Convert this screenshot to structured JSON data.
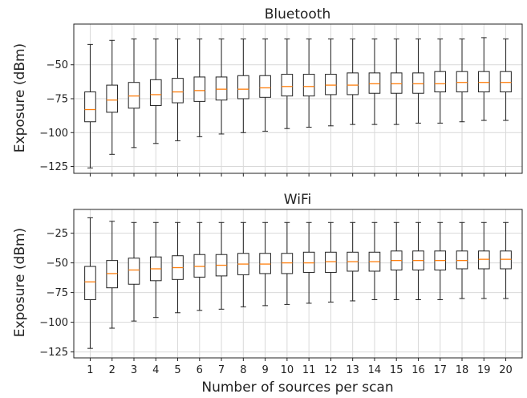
{
  "xlabel": "Number of sources per scan",
  "colors": {
    "median": "#ff7f0e",
    "box": "#222222",
    "grid": "#d9d9d9"
  },
  "chart_data": [
    {
      "type": "box",
      "title": "Bluetooth",
      "xlabel": "Number of sources per scan",
      "ylabel": "Exposure (dBm)",
      "ylim": [
        -130,
        -20
      ],
      "yticks": [
        -50,
        -75,
        -100,
        -125
      ],
      "grid": true,
      "categories": [
        "1",
        "2",
        "3",
        "4",
        "5",
        "6",
        "7",
        "8",
        "9",
        "10",
        "11",
        "12",
        "13",
        "14",
        "15",
        "16",
        "17",
        "18",
        "19",
        "20"
      ],
      "series": [
        {
          "boxes": [
            {
              "whislo": -126,
              "q1": -92,
              "med": -83,
              "q3": -70,
              "whishi": -35
            },
            {
              "whislo": -116,
              "q1": -85,
              "med": -76,
              "q3": -65,
              "whishi": -32
            },
            {
              "whislo": -111,
              "q1": -82,
              "med": -73,
              "q3": -63,
              "whishi": -31
            },
            {
              "whislo": -108,
              "q1": -80,
              "med": -72,
              "q3": -61,
              "whishi": -31
            },
            {
              "whislo": -106,
              "q1": -78,
              "med": -70,
              "q3": -60,
              "whishi": -31
            },
            {
              "whislo": -103,
              "q1": -77,
              "med": -69,
              "q3": -59,
              "whishi": -31
            },
            {
              "whislo": -101,
              "q1": -76,
              "med": -68,
              "q3": -59,
              "whishi": -31
            },
            {
              "whislo": -100,
              "q1": -75,
              "med": -68,
              "q3": -58,
              "whishi": -31
            },
            {
              "whislo": -99,
              "q1": -74,
              "med": -67,
              "q3": -58,
              "whishi": -31
            },
            {
              "whislo": -97,
              "q1": -73,
              "med": -66,
              "q3": -57,
              "whishi": -31
            },
            {
              "whislo": -96,
              "q1": -73,
              "med": -66,
              "q3": -57,
              "whishi": -31
            },
            {
              "whislo": -95,
              "q1": -72,
              "med": -65,
              "q3": -57,
              "whishi": -31
            },
            {
              "whislo": -94,
              "q1": -72,
              "med": -65,
              "q3": -56,
              "whishi": -31
            },
            {
              "whislo": -94,
              "q1": -71,
              "med": -64,
              "q3": -56,
              "whishi": -31
            },
            {
              "whislo": -94,
              "q1": -71,
              "med": -64,
              "q3": -56,
              "whishi": -31
            },
            {
              "whislo": -93,
              "q1": -71,
              "med": -64,
              "q3": -56,
              "whishi": -31
            },
            {
              "whislo": -93,
              "q1": -70,
              "med": -64,
              "q3": -55,
              "whishi": -31
            },
            {
              "whislo": -92,
              "q1": -70,
              "med": -63,
              "q3": -55,
              "whishi": -31
            },
            {
              "whislo": -91,
              "q1": -70,
              "med": -63,
              "q3": -55,
              "whishi": -30
            },
            {
              "whislo": -91,
              "q1": -70,
              "med": -63,
              "q3": -55,
              "whishi": -31
            }
          ]
        }
      ]
    },
    {
      "type": "box",
      "title": "WiFi",
      "xlabel": "Number of sources per scan",
      "ylabel": "Exposure (dBm)",
      "ylim": [
        -130,
        -5
      ],
      "yticks": [
        -25,
        -50,
        -75,
        -100,
        -125
      ],
      "grid": true,
      "categories": [
        "1",
        "2",
        "3",
        "4",
        "5",
        "6",
        "7",
        "8",
        "9",
        "10",
        "11",
        "12",
        "13",
        "14",
        "15",
        "16",
        "17",
        "18",
        "19",
        "20"
      ],
      "series": [
        {
          "boxes": [
            {
              "whislo": -122,
              "q1": -81,
              "med": -66,
              "q3": -53,
              "whishi": -12
            },
            {
              "whislo": -105,
              "q1": -71,
              "med": -59,
              "q3": -48,
              "whishi": -15
            },
            {
              "whislo": -99,
              "q1": -68,
              "med": -56,
              "q3": -46,
              "whishi": -16
            },
            {
              "whislo": -96,
              "q1": -65,
              "med": -55,
              "q3": -45,
              "whishi": -16
            },
            {
              "whislo": -92,
              "q1": -64,
              "med": -54,
              "q3": -44,
              "whishi": -16
            },
            {
              "whislo": -90,
              "q1": -62,
              "med": -53,
              "q3": -43,
              "whishi": -16
            },
            {
              "whislo": -89,
              "q1": -61,
              "med": -52,
              "q3": -43,
              "whishi": -16
            },
            {
              "whislo": -87,
              "q1": -60,
              "med": -51,
              "q3": -42,
              "whishi": -16
            },
            {
              "whislo": -86,
              "q1": -59,
              "med": -51,
              "q3": -42,
              "whishi": -16
            },
            {
              "whislo": -85,
              "q1": -59,
              "med": -50,
              "q3": -42,
              "whishi": -16
            },
            {
              "whislo": -84,
              "q1": -58,
              "med": -50,
              "q3": -41,
              "whishi": -16
            },
            {
              "whislo": -83,
              "q1": -58,
              "med": -49,
              "q3": -41,
              "whishi": -16
            },
            {
              "whislo": -82,
              "q1": -57,
              "med": -49,
              "q3": -41,
              "whishi": -16
            },
            {
              "whislo": -81,
              "q1": -57,
              "med": -49,
              "q3": -41,
              "whishi": -16
            },
            {
              "whislo": -81,
              "q1": -56,
              "med": -48,
              "q3": -40,
              "whishi": -16
            },
            {
              "whislo": -81,
              "q1": -56,
              "med": -48,
              "q3": -40,
              "whishi": -16
            },
            {
              "whislo": -81,
              "q1": -56,
              "med": -48,
              "q3": -40,
              "whishi": -16
            },
            {
              "whislo": -80,
              "q1": -55,
              "med": -48,
              "q3": -40,
              "whishi": -16
            },
            {
              "whislo": -80,
              "q1": -55,
              "med": -47,
              "q3": -40,
              "whishi": -16
            },
            {
              "whislo": -80,
              "q1": -55,
              "med": -47,
              "q3": -40,
              "whishi": -16
            }
          ]
        }
      ]
    }
  ]
}
